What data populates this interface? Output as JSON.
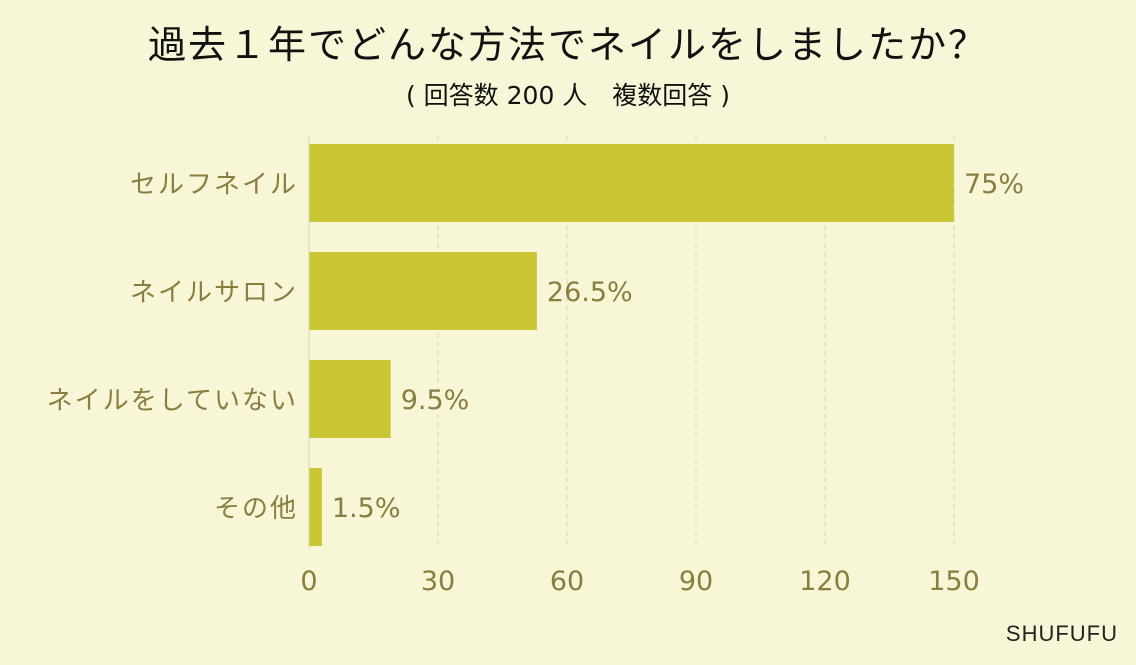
{
  "header": {
    "title": "過去１年でどんな方法でネイルをしましたか？",
    "subtitle": "( 回答数 200 人　複数回答 )"
  },
  "brand": "SHUFUFU",
  "colors": {
    "background": "#f7f6d7",
    "bar": "#cbc636",
    "label_text": "#8a7e3f",
    "grid": "#d9d6b4"
  },
  "chart_data": {
    "type": "bar",
    "orientation": "horizontal",
    "categories": [
      "セルフネイル",
      "ネイルサロン",
      "ネイルをしていない",
      "その他"
    ],
    "values": [
      150,
      53,
      19,
      3
    ],
    "data_labels": [
      "75%",
      "26.5%",
      "9.5%",
      "1.5%"
    ],
    "xlim": [
      0,
      150
    ],
    "xticks": [
      0,
      30,
      60,
      90,
      120,
      150
    ],
    "grid": true
  }
}
